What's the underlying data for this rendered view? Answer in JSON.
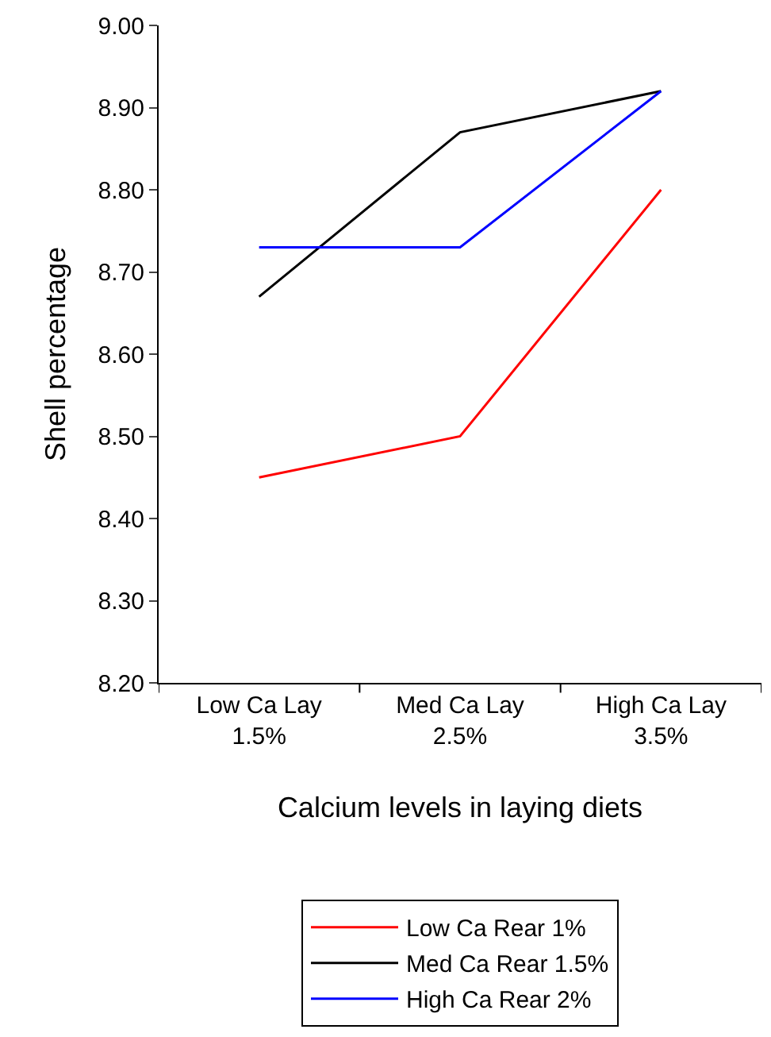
{
  "chart_data": {
    "type": "line",
    "xlabel": "Calcium levels in laying diets",
    "ylabel": "Shell percentage",
    "categories": [
      "Low Ca Lay\n1.5%",
      "Med Ca Lay\n2.5%",
      "High Ca Lay\n3.5%"
    ],
    "series": [
      {
        "name": "Low Ca Rear 1%",
        "color": "#ff0000",
        "values": [
          8.45,
          8.5,
          8.8
        ]
      },
      {
        "name": "Med Ca Rear 1.5%",
        "color": "#000000",
        "values": [
          8.67,
          8.87,
          8.92
        ]
      },
      {
        "name": "High Ca Rear 2%",
        "color": "#0000ff",
        "values": [
          8.73,
          8.73,
          8.92
        ]
      }
    ],
    "ylim": [
      8.2,
      9.0
    ],
    "yticks": [
      {
        "value": 8.2,
        "label": "8.20"
      },
      {
        "value": 8.3,
        "label": "8.30"
      },
      {
        "value": 8.4,
        "label": "8.40"
      },
      {
        "value": 8.5,
        "label": "8.50"
      },
      {
        "value": 8.6,
        "label": "8.60"
      },
      {
        "value": 8.7,
        "label": "8.70"
      },
      {
        "value": 8.8,
        "label": "8.80"
      },
      {
        "value": 8.9,
        "label": "8.90"
      },
      {
        "value": 9.0,
        "label": "9.00"
      }
    ],
    "legend": "bottom",
    "marker": "none",
    "line_style": "solid"
  }
}
